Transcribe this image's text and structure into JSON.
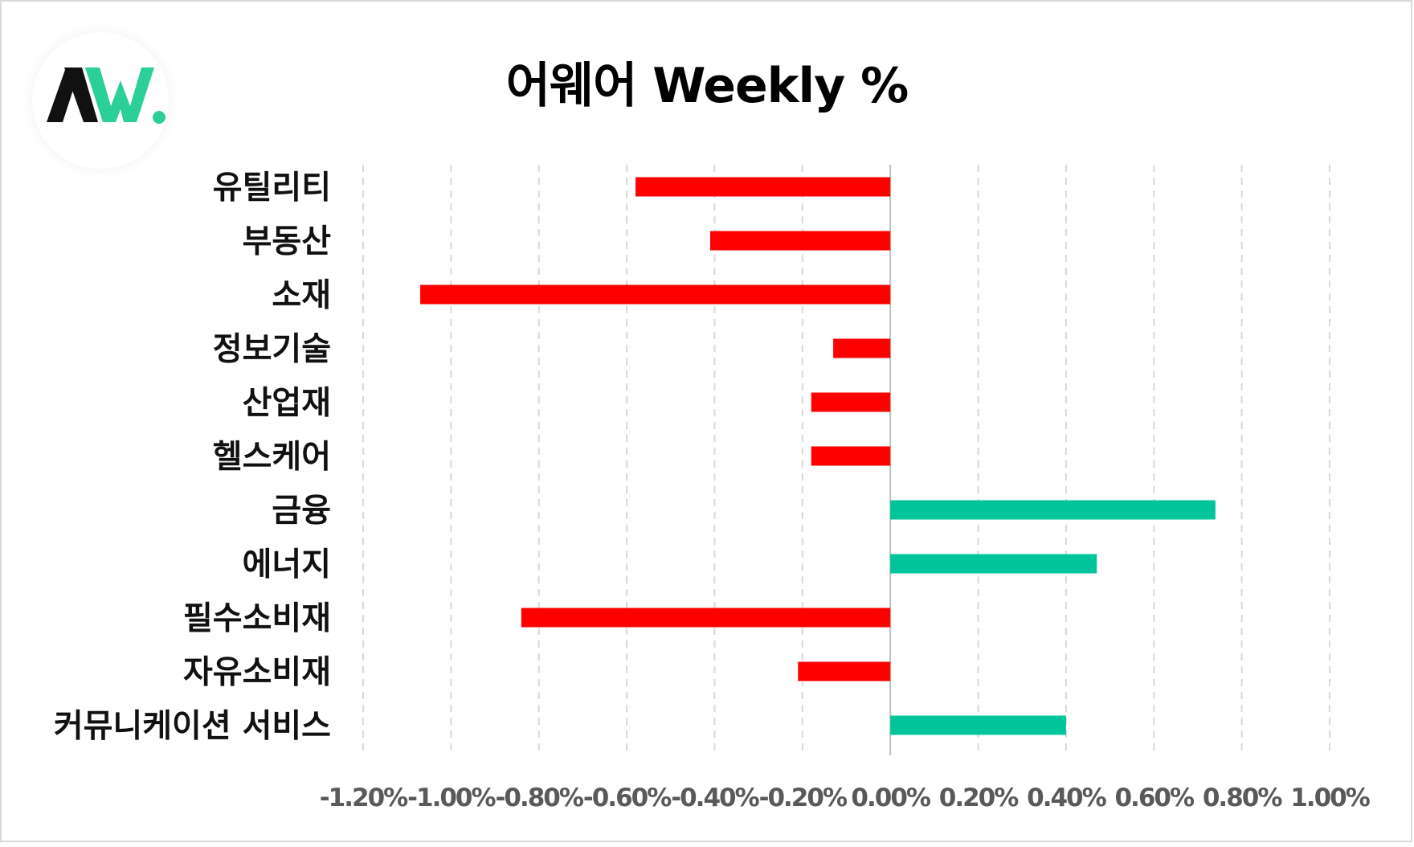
{
  "colors": {
    "negative": "#ff0000",
    "positive": "#00c49a",
    "grid": "#d9d9d9",
    "logo_dark": "#111111",
    "logo_green": "#2ccf97"
  },
  "logo": {
    "icon": "aw-logo-icon",
    "text": "AW."
  },
  "chart_data": {
    "type": "bar",
    "orientation": "horizontal",
    "title": "어웨어 Weekly %",
    "xlabel": "",
    "ylabel": "",
    "categories": [
      "유틸리티",
      "부동산",
      "소재",
      "정보기술",
      "산업재",
      "헬스케어",
      "금융",
      "에너지",
      "필수소비재",
      "자유소비재",
      "커뮤니케이션 서비스"
    ],
    "values": [
      -0.58,
      -0.41,
      -1.07,
      -0.13,
      -0.18,
      -0.18,
      0.74,
      0.47,
      -0.84,
      -0.21,
      0.4
    ],
    "unit": "%",
    "xlim": [
      -1.2,
      1.0
    ],
    "xticks": [
      "-1.20%",
      "-1.00%",
      "-0.80%",
      "-0.60%",
      "-0.40%",
      "-0.20%",
      "0.00%",
      "0.20%",
      "0.40%",
      "0.60%",
      "0.80%",
      "1.00%"
    ],
    "grid": true,
    "legend": "none"
  }
}
